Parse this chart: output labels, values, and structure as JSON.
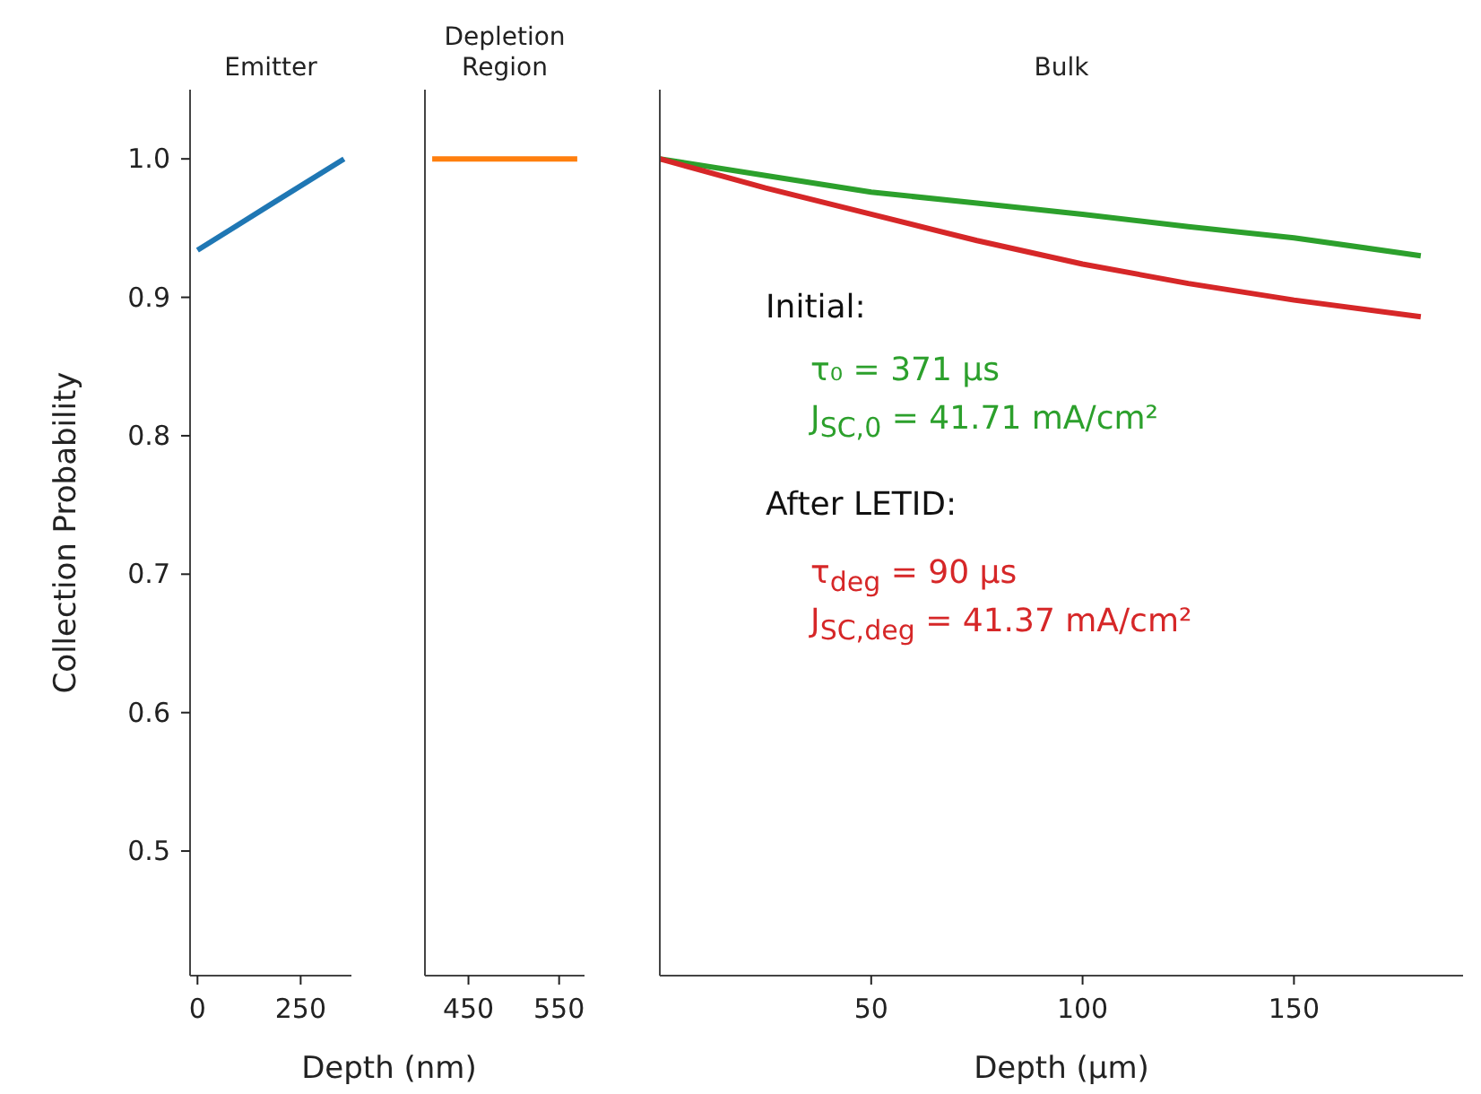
{
  "chart_data": [
    {
      "type": "line",
      "title": "Emitter",
      "xlabel": "Depth (nm)",
      "ylabel": "Collection Probability",
      "x": [
        0,
        177,
        355
      ],
      "series": [
        {
          "color": "#1f77b4",
          "values": [
            0.934,
            0.967,
            1.0
          ]
        }
      ],
      "xlim": [
        -18,
        373
      ],
      "xticks": [
        0,
        250
      ],
      "ylim": [
        0.41,
        1.05
      ],
      "yticks": [
        0.5,
        0.6,
        0.7,
        0.8,
        0.9,
        {
          "value": 1,
          "label": "1.0"
        }
      ]
    },
    {
      "type": "line",
      "title": "Depletion\nRegion",
      "x": [
        410,
        570
      ],
      "series": [
        {
          "color": "#ff7f0e",
          "values": [
            1.0,
            1.0
          ]
        }
      ],
      "xlim": [
        402,
        578
      ],
      "xticks": [
        450,
        550
      ],
      "ylim": [
        0.41,
        1.05
      ],
      "yticks": [
        0.5,
        0.6,
        0.7,
        0.8,
        0.9,
        1
      ],
      "tick_labels": "x"
    },
    {
      "type": "line",
      "title": "Bulk",
      "xlabel": "Depth (μm)",
      "x": [
        0,
        25,
        50,
        75,
        100,
        125,
        150,
        180
      ],
      "series": [
        {
          "color": "#2ca02c",
          "values": [
            1.0,
            0.988,
            0.976,
            0.968,
            0.96,
            0.951,
            0.943,
            0.93
          ]
        },
        {
          "color": "#d62728",
          "values": [
            1.0,
            0.979,
            0.96,
            0.941,
            0.924,
            0.91,
            0.898,
            0.886
          ]
        }
      ],
      "xlim": [
        0,
        190
      ],
      "xticks": [
        50,
        100,
        150
      ],
      "ylim": [
        0.41,
        1.05
      ],
      "yticks": [
        0.5,
        0.6,
        0.7,
        0.8,
        0.9,
        1
      ],
      "tick_labels": "x",
      "annotations": [
        "Initial:",
        "τ₀ = 371 μs",
        "J$_{SC,0}$ = 41.71 mA/cm²",
        "After LETID:",
        "τ$_{deg}$ = 90 μs",
        "J$_{SC,deg}$ = 41.37 mA/cm²"
      ]
    }
  ]
}
